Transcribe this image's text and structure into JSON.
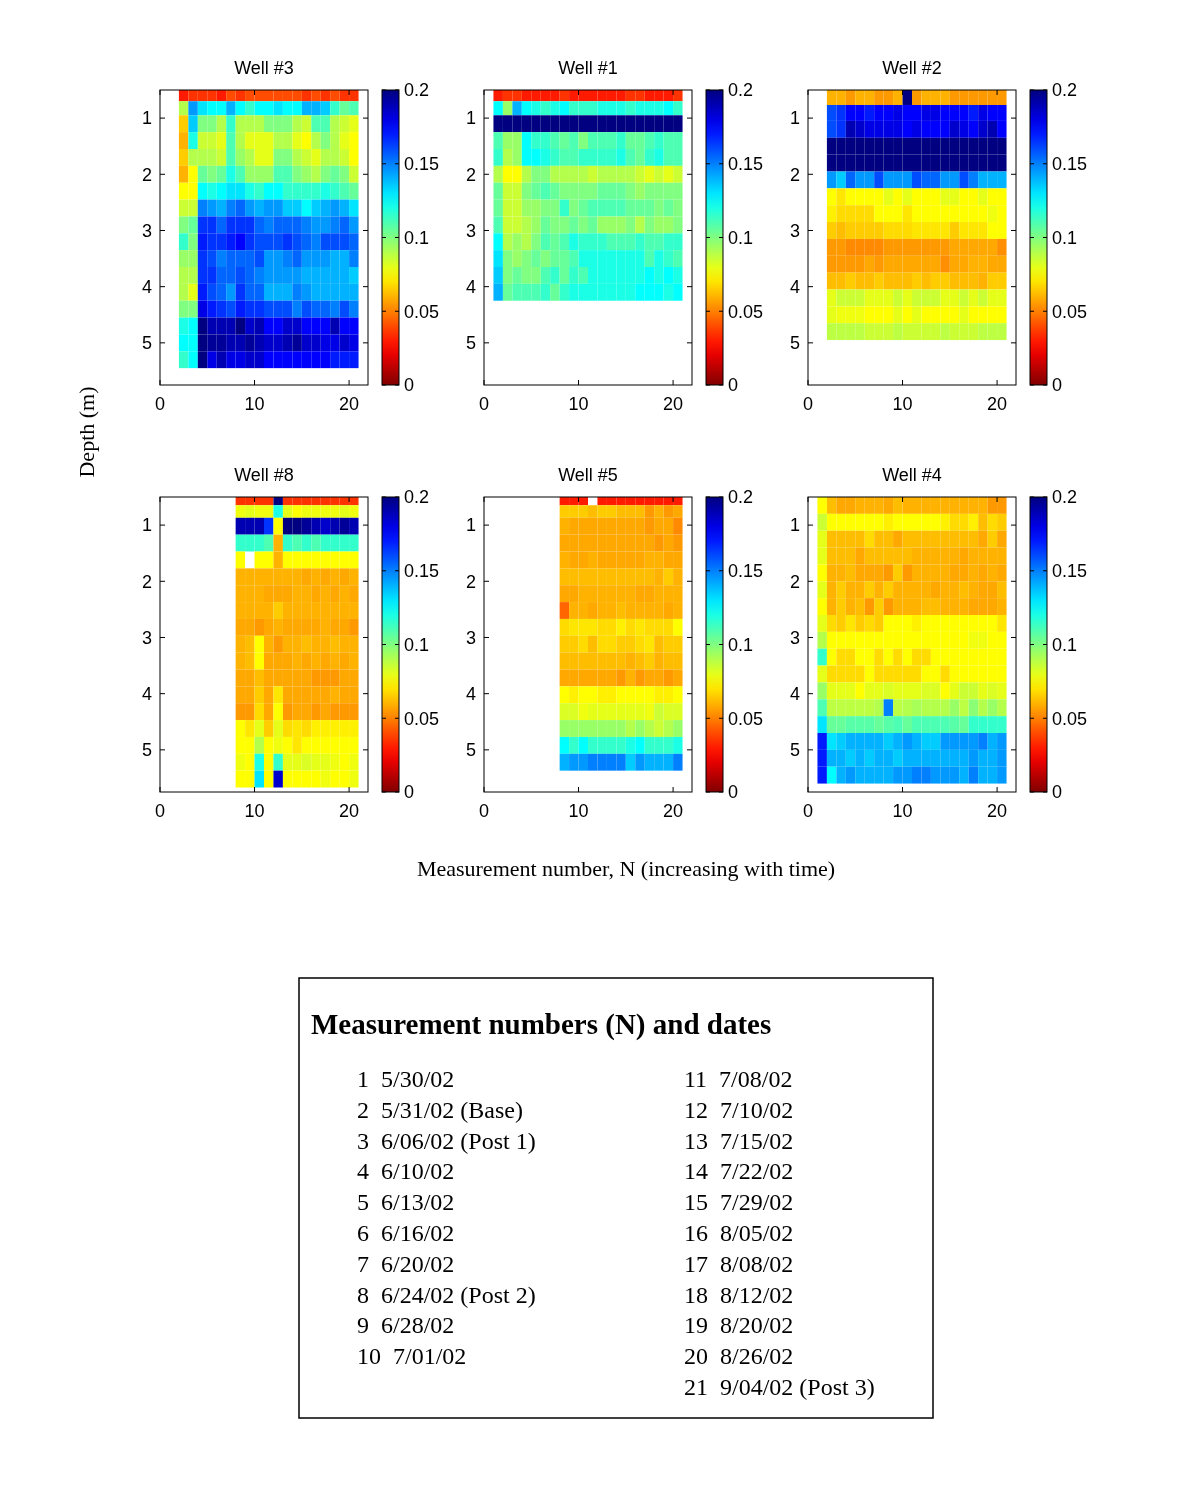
{
  "chart_data": [
    {
      "type": "heatmap",
      "title": "Well #3",
      "ylabel": "Depth (m)",
      "x": [
        2.5,
        3.5,
        4.5,
        5.5,
        6.5,
        7.5,
        8.5,
        9.5,
        10.5,
        11.5,
        12.5,
        13.5,
        14.5,
        15.5,
        16.5,
        17.5,
        18.5,
        19.5,
        20.5
      ],
      "y": [
        0.6,
        0.8,
        1.1,
        1.4,
        1.7,
        2.0,
        2.3,
        2.6,
        2.9,
        3.2,
        3.5,
        3.8,
        4.1,
        4.4,
        4.7,
        5.0,
        5.3
      ],
      "xlim": [
        0,
        22
      ],
      "xticks": [
        0,
        10,
        20
      ],
      "ylim": [
        5.75,
        0.5
      ],
      "yticks": [
        1,
        2,
        3,
        4,
        5
      ],
      "clim": [
        0,
        0.2
      ],
      "cticks": [
        0,
        0.05,
        0.1,
        0.15,
        0.2
      ],
      "cells": [
        [
          0.03,
          0.035,
          0.035,
          0.035,
          0.03,
          0.04,
          0.035,
          0.04,
          0.04,
          0.04,
          0.04,
          0.04,
          0.04,
          0.035,
          0.04,
          0.035,
          0.04,
          0.035,
          0.035
        ],
        [
          0.09,
          0.145,
          0.13,
          0.125,
          0.125,
          0.14,
          0.125,
          0.115,
          0.125,
          0.125,
          0.13,
          0.125,
          0.125,
          0.14,
          0.14,
          0.135,
          0.115,
          0.105,
          0.11
        ],
        [
          0.065,
          0.135,
          0.1,
          0.1,
          0.09,
          0.115,
          0.09,
          0.09,
          0.09,
          0.1,
          0.1,
          0.1,
          0.09,
          0.085,
          0.11,
          0.11,
          0.09,
          0.085,
          0.08
        ],
        [
          0.06,
          0.12,
          0.085,
          0.085,
          0.08,
          0.11,
          0.09,
          0.08,
          0.08,
          0.08,
          0.09,
          0.09,
          0.08,
          0.075,
          0.09,
          0.1,
          0.09,
          0.08,
          0.075
        ],
        [
          0.065,
          0.09,
          0.09,
          0.09,
          0.085,
          0.11,
          0.095,
          0.09,
          0.08,
          0.08,
          0.1,
          0.1,
          0.09,
          0.085,
          0.08,
          0.09,
          0.09,
          0.085,
          0.075
        ],
        [
          0.06,
          0.075,
          0.105,
          0.1,
          0.105,
          0.12,
          0.11,
          0.095,
          0.095,
          0.095,
          0.11,
          0.11,
          0.1,
          0.095,
          0.09,
          0.1,
          0.105,
          0.1,
          0.085
        ],
        [
          0.075,
          0.075,
          0.125,
          0.12,
          0.125,
          0.13,
          0.13,
          0.12,
          0.115,
          0.125,
          0.125,
          0.115,
          0.115,
          0.115,
          0.115,
          0.12,
          0.115,
          0.11,
          0.105
        ],
        [
          0.085,
          0.085,
          0.15,
          0.145,
          0.14,
          0.15,
          0.155,
          0.145,
          0.14,
          0.145,
          0.145,
          0.135,
          0.135,
          0.125,
          0.135,
          0.14,
          0.145,
          0.14,
          0.13
        ],
        [
          0.1,
          0.105,
          0.165,
          0.165,
          0.155,
          0.165,
          0.165,
          0.165,
          0.155,
          0.15,
          0.155,
          0.155,
          0.155,
          0.15,
          0.145,
          0.145,
          0.15,
          0.155,
          0.145
        ],
        [
          0.115,
          0.1,
          0.17,
          0.165,
          0.165,
          0.17,
          0.175,
          0.165,
          0.16,
          0.16,
          0.16,
          0.165,
          0.16,
          0.155,
          0.15,
          0.16,
          0.16,
          0.16,
          0.155
        ],
        [
          0.095,
          0.095,
          0.165,
          0.16,
          0.15,
          0.155,
          0.155,
          0.155,
          0.16,
          0.145,
          0.145,
          0.15,
          0.155,
          0.145,
          0.145,
          0.145,
          0.14,
          0.14,
          0.15
        ],
        [
          0.09,
          0.09,
          0.165,
          0.165,
          0.155,
          0.155,
          0.16,
          0.155,
          0.15,
          0.145,
          0.145,
          0.145,
          0.145,
          0.14,
          0.14,
          0.14,
          0.14,
          0.14,
          0.135
        ],
        [
          0.09,
          0.08,
          0.17,
          0.16,
          0.155,
          0.145,
          0.165,
          0.155,
          0.155,
          0.14,
          0.14,
          0.14,
          0.15,
          0.145,
          0.14,
          0.14,
          0.14,
          0.14,
          0.14
        ],
        [
          0.1,
          0.1,
          0.18,
          0.17,
          0.165,
          0.16,
          0.17,
          0.165,
          0.165,
          0.16,
          0.16,
          0.16,
          0.15,
          0.16,
          0.155,
          0.155,
          0.15,
          0.16,
          0.15
        ],
        [
          0.12,
          0.125,
          0.2,
          0.19,
          0.19,
          0.19,
          0.2,
          0.185,
          0.19,
          0.175,
          0.175,
          0.185,
          0.185,
          0.175,
          0.175,
          0.175,
          0.19,
          0.175,
          0.175
        ],
        [
          0.125,
          0.125,
          0.2,
          0.195,
          0.195,
          0.19,
          0.19,
          0.195,
          0.19,
          0.185,
          0.185,
          0.19,
          0.195,
          0.185,
          0.185,
          0.18,
          0.18,
          0.185,
          0.18
        ],
        [
          0.115,
          0.125,
          0.2,
          0.18,
          0.19,
          0.18,
          0.18,
          0.185,
          0.185,
          0.175,
          0.175,
          0.175,
          0.175,
          0.175,
          0.175,
          0.175,
          0.17,
          0.17,
          0.17
        ]
      ]
    },
    {
      "type": "heatmap",
      "title": "Well #1",
      "x": [
        1.5,
        2.5,
        3.5,
        4.5,
        5.5,
        6.5,
        7.5,
        8.5,
        9.5,
        10.5,
        11.5,
        12.5,
        13.5,
        14.5,
        15.5,
        16.5,
        17.5,
        18.5,
        19.5,
        20.5
      ],
      "y": [
        0.6,
        0.8,
        1.1,
        1.4,
        1.7,
        2.0,
        2.3,
        2.6,
        2.9,
        3.2,
        3.5,
        3.8,
        4.1
      ],
      "xlim": [
        0,
        22
      ],
      "xticks": [
        0,
        10,
        20
      ],
      "ylim": [
        5.75,
        0.5
      ],
      "yticks": [
        1,
        2,
        3,
        4,
        5
      ],
      "clim": [
        0,
        0.2
      ],
      "cticks": [
        0,
        0.05,
        0.1,
        0.15,
        0.2
      ],
      "cells": [
        [
          0.03,
          0.035,
          0.035,
          0.03,
          0.03,
          0.03,
          0.03,
          0.035,
          0.03,
          0.03,
          0.03,
          0.03,
          0.03,
          0.03,
          0.035,
          0.035,
          0.03,
          0.03,
          0.03,
          0.035
        ],
        [
          0.125,
          0.095,
          0.14,
          0.125,
          0.12,
          0.115,
          0.12,
          0.125,
          0.115,
          0.115,
          0.115,
          0.12,
          0.12,
          0.12,
          0.115,
          0.12,
          0.12,
          0.12,
          0.125,
          0.115
        ],
        [
          0.2,
          0.2,
          0.2,
          0.2,
          0.2,
          0.2,
          0.2,
          0.2,
          0.2,
          0.2,
          0.2,
          0.2,
          0.2,
          0.2,
          0.2,
          0.2,
          0.2,
          0.2,
          0.2,
          0.2
        ],
        [
          0.11,
          0.095,
          0.095,
          0.125,
          0.115,
          0.115,
          0.11,
          0.105,
          0.11,
          0.1,
          0.11,
          0.11,
          0.11,
          0.115,
          0.105,
          0.105,
          0.11,
          0.115,
          0.11,
          0.11
        ],
        [
          0.115,
          0.09,
          0.095,
          0.125,
          0.125,
          0.12,
          0.115,
          0.11,
          0.11,
          0.115,
          0.115,
          0.115,
          0.115,
          0.12,
          0.11,
          0.105,
          0.115,
          0.12,
          0.11,
          0.11
        ],
        [
          0.09,
          0.075,
          0.075,
          0.09,
          0.1,
          0.1,
          0.09,
          0.09,
          0.09,
          0.09,
          0.085,
          0.09,
          0.09,
          0.09,
          0.09,
          0.085,
          0.08,
          0.085,
          0.08,
          0.085
        ],
        [
          0.105,
          0.085,
          0.085,
          0.1,
          0.105,
          0.11,
          0.105,
          0.1,
          0.1,
          0.1,
          0.1,
          0.105,
          0.105,
          0.105,
          0.1,
          0.095,
          0.1,
          0.1,
          0.1,
          0.1
        ],
        [
          0.105,
          0.085,
          0.085,
          0.095,
          0.095,
          0.1,
          0.1,
          0.115,
          0.1,
          0.105,
          0.11,
          0.11,
          0.11,
          0.11,
          0.105,
          0.105,
          0.105,
          0.1,
          0.105,
          0.1
        ],
        [
          0.11,
          0.085,
          0.085,
          0.09,
          0.095,
          0.105,
          0.1,
          0.1,
          0.105,
          0.1,
          0.105,
          0.095,
          0.095,
          0.095,
          0.1,
          0.09,
          0.1,
          0.095,
          0.095,
          0.1
        ],
        [
          0.125,
          0.09,
          0.095,
          0.09,
          0.1,
          0.11,
          0.105,
          0.11,
          0.12,
          0.115,
          0.115,
          0.115,
          0.11,
          0.11,
          0.11,
          0.115,
          0.11,
          0.11,
          0.115,
          0.115
        ],
        [
          0.13,
          0.1,
          0.095,
          0.1,
          0.105,
          0.1,
          0.105,
          0.105,
          0.11,
          0.12,
          0.12,
          0.12,
          0.12,
          0.12,
          0.12,
          0.12,
          0.11,
          0.12,
          0.115,
          0.11
        ],
        [
          0.135,
          0.1,
          0.105,
          0.1,
          0.1,
          0.11,
          0.115,
          0.105,
          0.115,
          0.11,
          0.12,
          0.12,
          0.12,
          0.12,
          0.12,
          0.12,
          0.125,
          0.12,
          0.125,
          0.12
        ],
        [
          0.14,
          0.105,
          0.11,
          0.11,
          0.11,
          0.115,
          0.105,
          0.115,
          0.12,
          0.12,
          0.12,
          0.12,
          0.12,
          0.12,
          0.12,
          0.125,
          0.125,
          0.125,
          0.12,
          0.125
        ]
      ]
    },
    {
      "type": "heatmap",
      "title": "Well #2",
      "x": [
        2.5,
        3.5,
        4.5,
        5.5,
        6.5,
        7.5,
        8.5,
        9.5,
        10.5,
        11.5,
        12.5,
        13.5,
        14.5,
        15.5,
        16.5,
        17.5,
        18.5,
        19.5,
        20.5
      ],
      "y": [
        0.633,
        0.9,
        1.2,
        1.5,
        1.8,
        2.1,
        2.4,
        2.7,
        3.0,
        3.3,
        3.6,
        3.9,
        4.2,
        4.5,
        4.8
      ],
      "xlim": [
        0,
        22
      ],
      "xticks": [
        0,
        10,
        20
      ],
      "ylim": [
        5.75,
        0.5
      ],
      "yticks": [
        1,
        2,
        3,
        4,
        5
      ],
      "clim": [
        0,
        0.2
      ],
      "cticks": [
        0,
        0.05,
        0.1,
        0.15,
        0.2
      ],
      "cells": [
        [
          0.06,
          0.06,
          0.055,
          0.06,
          0.06,
          0.055,
          0.055,
          0.06,
          0.2,
          0.055,
          0.06,
          0.06,
          0.06,
          0.055,
          0.055,
          0.055,
          0.055,
          0.055,
          0.055
        ],
        [
          0.16,
          0.165,
          0.175,
          0.175,
          0.17,
          0.175,
          0.175,
          0.18,
          0.175,
          0.175,
          0.18,
          0.18,
          0.175,
          0.175,
          0.175,
          0.17,
          0.18,
          0.175,
          0.175
        ],
        [
          0.16,
          0.165,
          0.19,
          0.185,
          0.18,
          0.18,
          0.18,
          0.18,
          0.175,
          0.18,
          0.175,
          0.175,
          0.175,
          0.185,
          0.18,
          0.175,
          0.185,
          0.19,
          0.175
        ],
        [
          0.2,
          0.2,
          0.2,
          0.2,
          0.2,
          0.2,
          0.2,
          0.2,
          0.2,
          0.2,
          0.2,
          0.2,
          0.2,
          0.2,
          0.2,
          0.2,
          0.2,
          0.2,
          0.2
        ],
        [
          0.2,
          0.2,
          0.2,
          0.2,
          0.2,
          0.2,
          0.2,
          0.2,
          0.2,
          0.2,
          0.2,
          0.2,
          0.2,
          0.2,
          0.2,
          0.2,
          0.2,
          0.2,
          0.2
        ],
        [
          0.145,
          0.135,
          0.155,
          0.145,
          0.145,
          0.16,
          0.145,
          0.145,
          0.145,
          0.16,
          0.155,
          0.155,
          0.145,
          0.145,
          0.16,
          0.15,
          0.14,
          0.14,
          0.14
        ],
        [
          0.075,
          0.07,
          0.075,
          0.075,
          0.075,
          0.075,
          0.08,
          0.075,
          0.08,
          0.075,
          0.075,
          0.075,
          0.08,
          0.08,
          0.075,
          0.075,
          0.08,
          0.075,
          0.075
        ],
        [
          0.072,
          0.068,
          0.068,
          0.068,
          0.068,
          0.075,
          0.075,
          0.075,
          0.07,
          0.075,
          0.075,
          0.075,
          0.075,
          0.075,
          0.075,
          0.075,
          0.075,
          0.078,
          0.075
        ],
        [
          0.065,
          0.062,
          0.065,
          0.065,
          0.065,
          0.065,
          0.068,
          0.068,
          0.068,
          0.07,
          0.07,
          0.07,
          0.07,
          0.065,
          0.07,
          0.07,
          0.07,
          0.075,
          0.075
        ],
        [
          0.055,
          0.055,
          0.052,
          0.052,
          0.052,
          0.052,
          0.055,
          0.055,
          0.055,
          0.055,
          0.055,
          0.055,
          0.055,
          0.058,
          0.058,
          0.058,
          0.058,
          0.058,
          0.053
        ],
        [
          0.055,
          0.055,
          0.055,
          0.055,
          0.058,
          0.055,
          0.058,
          0.058,
          0.058,
          0.058,
          0.058,
          0.058,
          0.053,
          0.058,
          0.058,
          0.06,
          0.06,
          0.058,
          0.058
        ],
        [
          0.062,
          0.062,
          0.065,
          0.062,
          0.062,
          0.065,
          0.062,
          0.062,
          0.062,
          0.065,
          0.062,
          0.065,
          0.065,
          0.062,
          0.062,
          0.062,
          0.06,
          0.065,
          0.065
        ],
        [
          0.08,
          0.085,
          0.085,
          0.085,
          0.08,
          0.08,
          0.08,
          0.085,
          0.08,
          0.085,
          0.085,
          0.085,
          0.08,
          0.08,
          0.085,
          0.08,
          0.085,
          0.08,
          0.08
        ],
        [
          0.08,
          0.078,
          0.078,
          0.078,
          0.075,
          0.075,
          0.075,
          0.08,
          0.075,
          0.08,
          0.075,
          0.075,
          0.075,
          0.075,
          0.08,
          0.075,
          0.075,
          0.075,
          0.075
        ],
        [
          0.088,
          0.088,
          0.088,
          0.088,
          0.085,
          0.085,
          0.085,
          0.088,
          0.085,
          0.085,
          0.085,
          0.085,
          0.088,
          0.085,
          0.085,
          0.085,
          0.088,
          0.088,
          0.088
        ]
      ]
    },
    {
      "type": "heatmap",
      "title": "Well #8",
      "x": [
        8.5,
        9.5,
        10.5,
        11.5,
        12.5,
        13.5,
        14.5,
        15.5,
        16.5,
        17.5,
        18.5,
        19.5,
        20.5
      ],
      "y": [
        0.573,
        0.72,
        1.02,
        1.32,
        1.62,
        1.92,
        2.22,
        2.52,
        2.82,
        3.12,
        3.42,
        3.72,
        4.02,
        4.32,
        4.62,
        4.92,
        5.22,
        5.52
      ],
      "xlim": [
        0,
        22
      ],
      "xticks": [
        0,
        10,
        20
      ],
      "ylim": [
        5.75,
        0.5
      ],
      "yticks": [
        1,
        2,
        3,
        4,
        5
      ],
      "clim": [
        0,
        0.2
      ],
      "cticks": [
        0,
        0.05,
        0.1,
        0.15,
        0.2
      ],
      "cells": [
        [
          0.035,
          0.035,
          0.035,
          0.035,
          0.2,
          0.035,
          0.035,
          0.035,
          0.035,
          0.035,
          0.035,
          0.035,
          0.035
        ],
        [
          0.078,
          0.08,
          0.078,
          0.078,
          0.12,
          0.08,
          0.075,
          0.078,
          0.078,
          0.078,
          0.078,
          0.08,
          0.078
        ],
        [
          0.19,
          0.19,
          0.19,
          0.165,
          0.075,
          0.2,
          0.2,
          0.195,
          0.19,
          0.185,
          0.19,
          0.195,
          0.19
        ],
        [
          0.115,
          0.115,
          0.115,
          0.11,
          0.06,
          0.115,
          0.11,
          0.115,
          0.11,
          0.115,
          0.115,
          0.115,
          0.115
        ],
        [
          0.075,
          null,
          0.075,
          0.075,
          0.06,
          0.075,
          0.075,
          0.075,
          0.075,
          0.075,
          0.075,
          0.075,
          0.075
        ],
        [
          0.06,
          0.06,
          0.06,
          0.06,
          0.06,
          0.06,
          0.06,
          0.058,
          0.06,
          0.058,
          0.06,
          0.058,
          0.06
        ],
        [
          0.06,
          0.06,
          0.06,
          0.058,
          0.058,
          0.058,
          0.06,
          0.06,
          0.058,
          0.06,
          0.058,
          0.06,
          0.058
        ],
        [
          0.06,
          0.06,
          0.06,
          0.06,
          0.065,
          0.06,
          0.06,
          0.06,
          0.06,
          0.06,
          0.06,
          0.06,
          0.06
        ],
        [
          0.058,
          0.058,
          0.055,
          0.058,
          0.06,
          0.058,
          0.058,
          0.058,
          0.058,
          0.06,
          0.058,
          0.058,
          0.055
        ],
        [
          0.06,
          0.062,
          0.075,
          0.06,
          0.055,
          0.06,
          0.06,
          0.062,
          0.06,
          0.06,
          0.062,
          0.06,
          0.06
        ],
        [
          0.06,
          0.062,
          0.075,
          0.058,
          0.058,
          0.058,
          0.06,
          0.058,
          0.06,
          0.058,
          0.06,
          0.058,
          0.06
        ],
        [
          0.058,
          0.058,
          0.062,
          0.058,
          0.058,
          0.058,
          0.058,
          0.058,
          0.055,
          0.055,
          0.055,
          0.058,
          0.058
        ],
        [
          0.058,
          0.058,
          0.065,
          0.058,
          0.07,
          0.058,
          0.058,
          0.058,
          0.058,
          0.058,
          0.06,
          0.058,
          0.058
        ],
        [
          0.055,
          0.055,
          0.068,
          0.058,
          0.075,
          0.055,
          0.058,
          0.058,
          0.055,
          0.058,
          0.055,
          0.055,
          0.055
        ],
        [
          0.075,
          0.07,
          0.08,
          0.065,
          0.08,
          0.068,
          0.07,
          0.068,
          0.072,
          0.072,
          0.072,
          0.072,
          0.072
        ],
        [
          0.075,
          0.075,
          0.09,
          0.075,
          0.078,
          0.075,
          0.07,
          0.075,
          0.075,
          0.075,
          0.075,
          0.075,
          0.075
        ],
        [
          0.078,
          0.075,
          0.12,
          0.075,
          0.115,
          0.08,
          0.08,
          0.082,
          0.08,
          0.08,
          0.078,
          0.075,
          0.078
        ],
        [
          0.075,
          0.075,
          0.13,
          0.075,
          0.185,
          0.075,
          0.075,
          0.075,
          0.075,
          0.078,
          0.075,
          0.075,
          0.078
        ]
      ]
    },
    {
      "type": "heatmap",
      "title": "Well #5",
      "xlabel": "Measurement number, N (increasing with time)",
      "x": [
        8.5,
        9.5,
        10.5,
        11.5,
        12.5,
        13.5,
        14.5,
        15.5,
        16.5,
        17.5,
        18.5,
        19.5,
        20.5
      ],
      "y": [
        0.573,
        0.72,
        1.02,
        1.32,
        1.62,
        1.92,
        2.22,
        2.52,
        2.82,
        3.12,
        3.42,
        3.72,
        4.02,
        4.32,
        4.62,
        4.92,
        5.22
      ],
      "xlim": [
        0,
        22
      ],
      "xticks": [
        0,
        10,
        20
      ],
      "ylim": [
        5.75,
        0.5
      ],
      "yticks": [
        1,
        2,
        3,
        4,
        5
      ],
      "clim": [
        0,
        0.2
      ],
      "cticks": [
        0,
        0.05,
        0.1,
        0.15,
        0.2
      ],
      "cells": [
        [
          0.03,
          0.03,
          0.03,
          null,
          0.03,
          0.03,
          0.03,
          0.03,
          0.03,
          0.03,
          0.03,
          0.03,
          0.03
        ],
        [
          0.065,
          0.065,
          0.065,
          0.062,
          0.065,
          0.065,
          0.062,
          0.062,
          0.062,
          0.055,
          0.06,
          0.055,
          0.058
        ],
        [
          0.06,
          0.058,
          0.058,
          0.058,
          0.058,
          0.058,
          0.058,
          0.058,
          0.058,
          0.055,
          0.058,
          0.058,
          0.052
        ],
        [
          0.058,
          0.058,
          0.058,
          0.058,
          0.058,
          0.058,
          0.058,
          0.058,
          0.058,
          0.058,
          0.055,
          0.058,
          0.055
        ],
        [
          0.06,
          0.058,
          0.058,
          0.06,
          0.058,
          0.058,
          0.058,
          0.058,
          0.058,
          0.06,
          0.06,
          0.058,
          0.058
        ],
        [
          0.062,
          0.062,
          0.062,
          0.062,
          0.062,
          0.062,
          0.062,
          0.062,
          0.062,
          0.062,
          0.06,
          0.065,
          0.06
        ],
        [
          0.058,
          0.058,
          0.06,
          0.06,
          0.06,
          0.06,
          0.06,
          0.06,
          0.058,
          0.058,
          0.06,
          0.06,
          0.06
        ],
        [
          0.045,
          0.06,
          0.06,
          0.058,
          0.06,
          0.06,
          0.062,
          0.06,
          0.06,
          0.06,
          0.06,
          0.058,
          0.06
        ],
        [
          0.068,
          0.07,
          0.07,
          0.07,
          0.068,
          0.068,
          0.072,
          0.068,
          0.07,
          0.068,
          0.068,
          0.068,
          0.075
        ],
        [
          0.065,
          0.065,
          0.068,
          0.062,
          0.068,
          0.068,
          0.065,
          0.065,
          0.068,
          0.07,
          0.062,
          0.065,
          0.065
        ],
        [
          0.062,
          0.062,
          0.062,
          0.062,
          0.062,
          0.062,
          0.062,
          0.06,
          0.062,
          0.065,
          0.06,
          0.062,
          0.062
        ],
        [
          0.058,
          0.058,
          0.058,
          0.058,
          0.058,
          0.058,
          0.055,
          0.06,
          0.055,
          0.058,
          0.058,
          0.055,
          0.058
        ],
        [
          0.075,
          0.072,
          0.075,
          0.075,
          0.072,
          0.072,
          0.075,
          0.075,
          0.075,
          0.075,
          0.072,
          0.072,
          0.075
        ],
        [
          0.082,
          0.082,
          0.078,
          0.08,
          0.08,
          0.08,
          0.08,
          0.08,
          0.08,
          0.078,
          0.085,
          0.082,
          0.082
        ],
        [
          0.095,
          0.095,
          0.095,
          0.095,
          0.095,
          0.095,
          0.095,
          0.09,
          0.095,
          0.09,
          0.085,
          0.09,
          0.095
        ],
        [
          0.125,
          0.115,
          0.125,
          0.115,
          0.115,
          0.115,
          0.115,
          0.12,
          0.125,
          0.115,
          0.115,
          0.115,
          0.12
        ],
        [
          0.14,
          0.145,
          0.145,
          0.15,
          0.15,
          0.15,
          0.15,
          0.135,
          0.145,
          0.14,
          0.14,
          0.14,
          0.15
        ]
      ]
    },
    {
      "type": "heatmap",
      "title": "Well #4",
      "x": [
        1.5,
        2.5,
        3.5,
        4.5,
        5.5,
        6.5,
        7.5,
        8.5,
        9.5,
        10.5,
        11.5,
        12.5,
        13.5,
        14.5,
        15.5,
        16.5,
        17.5,
        18.5,
        19.5,
        20.5
      ],
      "y": [
        0.65,
        0.95,
        1.25,
        1.55,
        1.85,
        2.15,
        2.45,
        2.75,
        3.05,
        3.35,
        3.65,
        3.95,
        4.25,
        4.55,
        4.85,
        5.15,
        5.45
      ],
      "xlim": [
        0,
        22
      ],
      "xticks": [
        0,
        10,
        20
      ],
      "ylim": [
        5.75,
        0.5
      ],
      "yticks": [
        1,
        2,
        3,
        4,
        5
      ],
      "clim": [
        0,
        0.2
      ],
      "cticks": [
        0,
        0.05,
        0.1,
        0.15,
        0.2
      ],
      "cells": [
        [
          0.075,
          0.062,
          0.058,
          0.058,
          0.06,
          0.06,
          0.06,
          0.058,
          0.062,
          0.06,
          0.06,
          0.06,
          0.06,
          0.06,
          0.06,
          0.06,
          0.06,
          0.06,
          0.055,
          0.055
        ],
        [
          0.085,
          0.075,
          0.075,
          0.075,
          0.075,
          0.075,
          0.075,
          0.072,
          0.075,
          0.075,
          0.075,
          0.075,
          0.075,
          0.072,
          0.068,
          0.068,
          0.072,
          0.062,
          0.068,
          0.065
        ],
        [
          0.08,
          0.062,
          0.062,
          0.062,
          0.062,
          0.068,
          0.062,
          0.062,
          0.058,
          0.062,
          0.062,
          0.062,
          0.062,
          0.062,
          0.062,
          0.062,
          0.062,
          0.058,
          0.065,
          0.058
        ],
        [
          0.08,
          0.062,
          0.062,
          0.062,
          0.058,
          0.062,
          0.062,
          0.062,
          0.062,
          0.062,
          0.06,
          0.06,
          0.06,
          0.06,
          0.06,
          0.058,
          0.06,
          0.06,
          0.06,
          0.06
        ],
        [
          0.075,
          0.06,
          0.06,
          0.062,
          0.058,
          0.058,
          0.058,
          0.055,
          0.065,
          0.055,
          0.06,
          0.06,
          0.06,
          0.06,
          0.058,
          0.058,
          0.06,
          0.058,
          0.06,
          0.058
        ],
        [
          0.08,
          0.06,
          0.065,
          0.06,
          0.06,
          0.065,
          0.06,
          0.065,
          0.06,
          0.06,
          0.06,
          0.06,
          0.058,
          0.06,
          0.06,
          0.062,
          0.06,
          0.058,
          0.058,
          0.062
        ],
        [
          0.075,
          0.06,
          0.065,
          0.06,
          0.062,
          0.055,
          0.065,
          0.055,
          0.06,
          0.06,
          0.06,
          0.062,
          0.062,
          0.06,
          0.06,
          0.06,
          0.058,
          0.058,
          0.058,
          0.06
        ],
        [
          0.08,
          0.068,
          0.065,
          0.07,
          0.065,
          0.068,
          0.065,
          0.075,
          0.075,
          0.075,
          0.072,
          0.075,
          0.075,
          0.075,
          0.075,
          0.075,
          0.075,
          0.075,
          0.075,
          0.07
        ],
        [
          0.09,
          0.075,
          0.075,
          0.075,
          0.075,
          0.075,
          0.075,
          0.075,
          0.075,
          0.075,
          0.075,
          0.075,
          0.075,
          0.075,
          0.075,
          0.075,
          0.078,
          0.078,
          0.075,
          0.075
        ],
        [
          0.115,
          0.075,
          0.068,
          0.068,
          0.075,
          0.075,
          0.068,
          0.075,
          0.068,
          0.075,
          0.068,
          0.068,
          0.075,
          0.075,
          0.075,
          0.075,
          0.075,
          0.075,
          0.075,
          0.075
        ],
        [
          0.08,
          0.068,
          0.068,
          0.068,
          0.068,
          0.075,
          0.068,
          0.068,
          0.068,
          0.068,
          0.068,
          0.075,
          0.075,
          0.068,
          0.075,
          0.075,
          0.075,
          0.075,
          0.075,
          0.075
        ],
        [
          0.095,
          0.08,
          0.08,
          0.08,
          0.075,
          0.08,
          0.08,
          0.082,
          0.08,
          0.08,
          0.08,
          0.082,
          0.082,
          0.075,
          0.08,
          0.085,
          0.085,
          0.08,
          0.082,
          0.08
        ],
        [
          0.11,
          0.088,
          0.088,
          0.088,
          0.088,
          0.088,
          0.09,
          0.15,
          0.088,
          0.09,
          0.092,
          0.09,
          0.09,
          0.09,
          0.095,
          0.088,
          0.098,
          0.09,
          0.095,
          0.09
        ],
        [
          0.13,
          0.105,
          0.105,
          0.108,
          0.108,
          0.108,
          0.105,
          0.108,
          0.11,
          0.105,
          0.11,
          0.11,
          0.11,
          0.11,
          0.108,
          0.105,
          0.115,
          0.115,
          0.115,
          0.115
        ],
        [
          0.17,
          0.13,
          0.135,
          0.14,
          0.14,
          0.14,
          0.14,
          0.135,
          0.14,
          0.145,
          0.14,
          0.135,
          0.135,
          0.145,
          0.145,
          0.145,
          0.145,
          0.15,
          0.14,
          0.145
        ],
        [
          0.17,
          0.14,
          0.14,
          0.135,
          0.14,
          0.135,
          0.14,
          0.14,
          0.135,
          0.14,
          0.14,
          0.14,
          0.14,
          0.14,
          0.14,
          0.14,
          0.145,
          0.14,
          0.14,
          0.145
        ],
        [
          0.17,
          0.125,
          0.14,
          0.145,
          0.14,
          0.14,
          0.14,
          0.14,
          0.145,
          0.145,
          0.15,
          0.15,
          0.145,
          0.145,
          0.145,
          0.14,
          0.15,
          0.14,
          0.14,
          0.145
        ]
      ]
    },
    {
      "type": "other",
      "title": "Measurement numbers (N) and dates",
      "annotations": [
        "1 5/30/02",
        "2 5/31/02 (Base)",
        "3 6/06/02 (Post 1)",
        "4 6/10/02",
        "5 6/13/02",
        "6 6/16/02",
        "7 6/20/02",
        "8 6/24/02 (Post 2)",
        "9 6/28/02",
        "10 7/01/02",
        "11 7/08/02",
        "12 7/10/02",
        "13 7/15/02",
        "14 7/22/02",
        "15 7/29/02",
        "16 8/05/02",
        "17 8/08/02",
        "18 8/12/02",
        "19 8/20/02",
        "20 8/26/02",
        "21 9/04/02 (Post 3)"
      ]
    }
  ]
}
